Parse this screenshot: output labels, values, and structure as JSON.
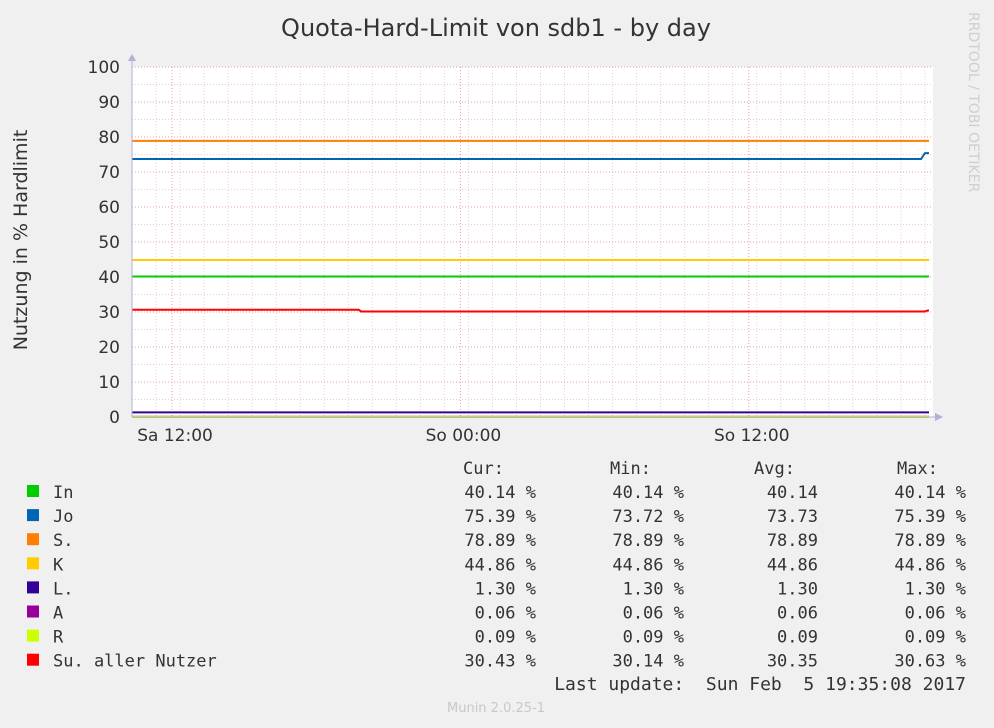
{
  "chart_data": {
    "type": "line",
    "title": "Quota-Hard-Limit von sdb1 - by day",
    "ylabel": "Nutzung in % Hardlimit",
    "xlabel": "",
    "watermark": "RRDTOOL / TOBI OETIKER",
    "ylim": [
      0,
      100
    ],
    "yticks": [
      0,
      10,
      20,
      30,
      40,
      50,
      60,
      70,
      80,
      90,
      100
    ],
    "xlim": [
      0,
      100
    ],
    "xticks": [
      {
        "label": "Sa 12:00",
        "x": 5
      },
      {
        "label": "So 00:00",
        "x": 41
      },
      {
        "label": "So 12:00",
        "x": 77
      }
    ],
    "grid": true,
    "series": [
      {
        "name": "In",
        "color": "#00cc00",
        "points": [
          [
            0,
            40.14
          ],
          [
            99.5,
            40.14
          ]
        ]
      },
      {
        "name": "Jo",
        "color": "#0066b3",
        "points": [
          [
            0,
            73.72
          ],
          [
            98.5,
            73.72
          ],
          [
            99,
            75.39
          ],
          [
            99.5,
            75.39
          ]
        ]
      },
      {
        "name": "S.",
        "color": "#ff8000",
        "points": [
          [
            0,
            78.89
          ],
          [
            99.5,
            78.89
          ]
        ]
      },
      {
        "name": "K",
        "color": "#ffcc00",
        "points": [
          [
            0,
            44.86
          ],
          [
            99.5,
            44.86
          ]
        ]
      },
      {
        "name": "L.",
        "color": "#330099",
        "points": [
          [
            0,
            1.3
          ],
          [
            99.5,
            1.3
          ]
        ]
      },
      {
        "name": "A",
        "color": "#990099",
        "points": [
          [
            0,
            0.06
          ],
          [
            99.5,
            0.06
          ]
        ]
      },
      {
        "name": "R",
        "color": "#ccff00",
        "points": [
          [
            0,
            0.09
          ],
          [
            99.5,
            0.09
          ]
        ]
      },
      {
        "name": "Su. aller Nutzer",
        "color": "#ff0000",
        "points": [
          [
            0,
            30.63
          ],
          [
            28.3,
            30.63
          ],
          [
            28.6,
            30.14
          ],
          [
            99,
            30.14
          ],
          [
            99.3,
            30.43
          ],
          [
            99.5,
            30.43
          ]
        ]
      }
    ],
    "legend": {
      "headers": {
        "cur": "Cur:",
        "min": "Min:",
        "avg": "Avg:",
        "max": "Max:"
      },
      "rows": [
        {
          "name": "In",
          "color": "#00cc00",
          "cur": "40.14 %",
          "min": "40.14 %",
          "avg": "40.14",
          "max": "40.14 %"
        },
        {
          "name": "Jo",
          "color": "#0066b3",
          "cur": "75.39 %",
          "min": "73.72 %",
          "avg": "73.73",
          "max": "75.39 %"
        },
        {
          "name": "S.",
          "color": "#ff8000",
          "cur": "78.89 %",
          "min": "78.89 %",
          "avg": "78.89",
          "max": "78.89 %"
        },
        {
          "name": "K",
          "color": "#ffcc00",
          "cur": "44.86 %",
          "min": "44.86 %",
          "avg": "44.86",
          "max": "44.86 %"
        },
        {
          "name": "L.",
          "color": "#330099",
          "cur": "1.30 %",
          "min": "1.30 %",
          "avg": "1.30",
          "max": "1.30 %"
        },
        {
          "name": "A",
          "color": "#990099",
          "cur": "0.06 %",
          "min": "0.06 %",
          "avg": "0.06",
          "max": "0.06 %"
        },
        {
          "name": "R",
          "color": "#ccff00",
          "cur": "0.09 %",
          "min": "0.09 %",
          "avg": "0.09",
          "max": "0.09 %"
        },
        {
          "name": "Su. aller Nutzer",
          "color": "#ff0000",
          "cur": "30.43 %",
          "min": "30.14 %",
          "avg": "30.35",
          "max": "30.63 %"
        }
      ]
    },
    "last_update": "Last update:  Sun Feb  5 19:35:08 2017",
    "footer": "Munin 2.0.25-1"
  }
}
